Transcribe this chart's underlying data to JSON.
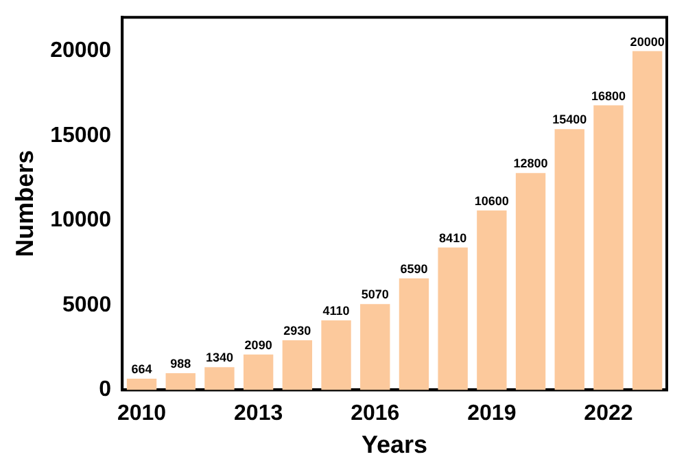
{
  "chart_data": {
    "type": "bar",
    "xlabel": "Years",
    "ylabel": "Numbers",
    "categories": [
      "2010",
      null,
      null,
      "2013",
      null,
      null,
      "2016",
      null,
      null,
      "2019",
      null,
      null,
      "2022",
      null
    ],
    "values": [
      664,
      988,
      1340,
      2090,
      2930,
      4110,
      5070,
      6590,
      8410,
      10600,
      12800,
      15400,
      16800,
      20000
    ],
    "color": "#fcc99c",
    "ylim": [
      0,
      22000
    ],
    "yticks": [
      0,
      5000,
      10000,
      15000,
      20000
    ],
    "grid": false,
    "legend": false,
    "data_labels": true
  }
}
